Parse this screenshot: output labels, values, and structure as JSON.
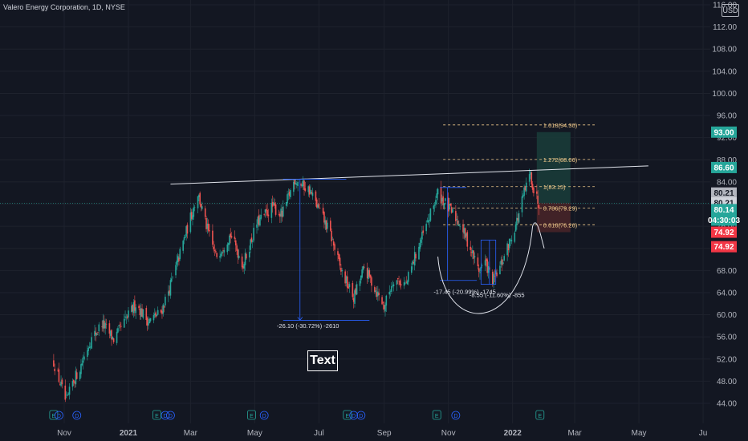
{
  "header": {
    "title": "Valero Energy Corporation, 1D, NYSE",
    "currency": "USD"
  },
  "annotation_text": "Text",
  "chart_data": {
    "type": "candlestick",
    "title": "Valero Energy Corporation, 1D, NYSE",
    "ylim": [
      40,
      116
    ],
    "y_ticks": [
      "44.00",
      "48.00",
      "52.00",
      "56.00",
      "60.00",
      "64.00",
      "68.00",
      "72.00",
      "76.00",
      "80.00",
      "84.00",
      "88.00",
      "92.00",
      "96.00",
      "100.00",
      "104.00",
      "108.00",
      "112.00",
      "116.00"
    ],
    "x_ticks": [
      "Nov",
      "2021",
      "Mar",
      "May",
      "Jul",
      "Sep",
      "Nov",
      "2022",
      "Mar",
      "May",
      "Ju"
    ],
    "price_path": [
      {
        "date": "2020-10-22",
        "price": 51.5
      },
      {
        "date": "2020-11-03",
        "price": 44.0
      },
      {
        "date": "2020-11-09",
        "price": 47.8
      },
      {
        "date": "2020-11-16",
        "price": 50.4
      },
      {
        "date": "2020-11-25",
        "price": 55.0
      },
      {
        "date": "2020-12-07",
        "price": 58.5
      },
      {
        "date": "2020-12-18",
        "price": 55.5
      },
      {
        "date": "2021-01-08",
        "price": 62.0
      },
      {
        "date": "2021-01-20",
        "price": 58.8
      },
      {
        "date": "2021-02-01",
        "price": 60.5
      },
      {
        "date": "2021-02-12",
        "price": 66.5
      },
      {
        "date": "2021-02-25",
        "price": 75.0
      },
      {
        "date": "2021-03-08",
        "price": 82.0
      },
      {
        "date": "2021-03-16",
        "price": 76.0
      },
      {
        "date": "2021-03-25",
        "price": 70.5
      },
      {
        "date": "2021-04-08",
        "price": 74.5
      },
      {
        "date": "2021-04-20",
        "price": 69.0
      },
      {
        "date": "2021-05-03",
        "price": 76.5
      },
      {
        "date": "2021-05-18",
        "price": 79.5
      },
      {
        "date": "2021-05-27",
        "price": 78.0
      },
      {
        "date": "2021-06-08",
        "price": 84.5
      },
      {
        "date": "2021-06-22",
        "price": 82.5
      },
      {
        "date": "2021-07-01",
        "price": 79.0
      },
      {
        "date": "2021-07-12",
        "price": 74.5
      },
      {
        "date": "2021-07-22",
        "price": 68.0
      },
      {
        "date": "2021-08-03",
        "price": 63.0
      },
      {
        "date": "2021-08-13",
        "price": 68.5
      },
      {
        "date": "2021-08-24",
        "price": 64.5
      },
      {
        "date": "2021-09-01",
        "price": 61.5
      },
      {
        "date": "2021-09-10",
        "price": 66.5
      },
      {
        "date": "2021-09-22",
        "price": 65.5
      },
      {
        "date": "2021-10-01",
        "price": 71.0
      },
      {
        "date": "2021-10-12",
        "price": 76.5
      },
      {
        "date": "2021-10-22",
        "price": 82.0
      },
      {
        "date": "2021-11-02",
        "price": 79.0
      },
      {
        "date": "2021-11-12",
        "price": 76.5
      },
      {
        "date": "2021-11-22",
        "price": 72.0
      },
      {
        "date": "2021-11-30",
        "price": 68.0
      },
      {
        "date": "2021-12-06",
        "price": 69.5
      },
      {
        "date": "2021-12-13",
        "price": 66.0
      },
      {
        "date": "2021-12-20",
        "price": 68.5
      },
      {
        "date": "2021-12-29",
        "price": 73.0
      },
      {
        "date": "2022-01-06",
        "price": 77.5
      },
      {
        "date": "2022-01-12",
        "price": 82.0
      },
      {
        "date": "2022-01-18",
        "price": 85.5
      },
      {
        "date": "2022-01-21",
        "price": 82.5
      },
      {
        "date": "2022-01-26",
        "price": 80.14
      }
    ],
    "resistance_line": {
      "from": {
        "date": "2021-02-10",
        "price": 83.6
      },
      "to": {
        "date": "2022-05-10",
        "price": 86.9
      }
    },
    "fib_levels": [
      {
        "label": "1.618(94.30)",
        "price": 94.3
      },
      {
        "label": "1.272(88.06)",
        "price": 88.06
      },
      {
        "label": "1(83.15)",
        "price": 83.15
      },
      {
        "label": "0.786(79.29)",
        "price": 79.29
      },
      {
        "label": "0.618(76.26)",
        "price": 76.26
      }
    ],
    "measures": [
      {
        "label": "-26.10 (-30.72%) -2610",
        "from_date": "2021-06-10",
        "from_price": 84.5,
        "to_date": "2021-06-10",
        "to_price": 59.0
      },
      {
        "label": "-17.45 (-20.99%) -1745",
        "from_date": "2021-10-29",
        "from_price": 83.0,
        "to_date": "2021-10-29",
        "to_price": 66.2
      },
      {
        "label": "-8.55 (-11.60%) -855",
        "from_date": "2021-12-10",
        "from_price": 73.5,
        "to_date": "2021-12-10",
        "to_price": 65.5
      }
    ],
    "position": {
      "entry": 80.21,
      "target": 93.0,
      "stop": 74.92,
      "start_date": "2022-01-24",
      "end_date": "2022-02-25"
    },
    "price_badges": [
      {
        "label": "93.00",
        "price": 93.0,
        "color": "#26a69a"
      },
      {
        "label": "86.60",
        "price": 86.6,
        "color": "#26a69a"
      },
      {
        "label": "80.21",
        "price": 82.0,
        "color": "#b2b5be"
      },
      {
        "label": "80.21",
        "price": 80.21,
        "color": "#d1d4dc"
      },
      {
        "label": "80.14",
        "price": 79.0,
        "color": "#26a69a"
      },
      {
        "label": "04:30:03",
        "price": 77.1,
        "color": "#26a69a"
      },
      {
        "label": "74.92",
        "price": 74.92,
        "color": "#f23645"
      },
      {
        "label": "74.92",
        "price": 72.3,
        "color": "#f23645"
      }
    ],
    "events": [
      {
        "date": "2020-10-22",
        "type": "E"
      },
      {
        "date": "2020-10-27",
        "type": "D"
      },
      {
        "date": "2020-11-13",
        "type": "D"
      },
      {
        "date": "2021-02-05",
        "type": "D"
      },
      {
        "date": "2021-02-10",
        "type": "D"
      },
      {
        "date": "2021-01-28",
        "type": "E"
      },
      {
        "date": "2021-04-28",
        "type": "E"
      },
      {
        "date": "2021-05-10",
        "type": "D"
      },
      {
        "date": "2021-07-28",
        "type": "E"
      },
      {
        "date": "2021-08-03",
        "type": "D"
      },
      {
        "date": "2021-08-10",
        "type": "D"
      },
      {
        "date": "2021-10-21",
        "type": "E"
      },
      {
        "date": "2021-11-08",
        "type": "D"
      },
      {
        "date": "2022-01-27",
        "type": "E"
      }
    ],
    "colors": {
      "background": "#131722",
      "up": "#26a69a",
      "down": "#ef5350",
      "grid": "#1e222d",
      "measure": "#2962ff",
      "resistance": "#e0e3eb",
      "fib": "#f0c98b",
      "target_zone": "#1a3d3a",
      "stop_zone": "#4a2428"
    }
  }
}
